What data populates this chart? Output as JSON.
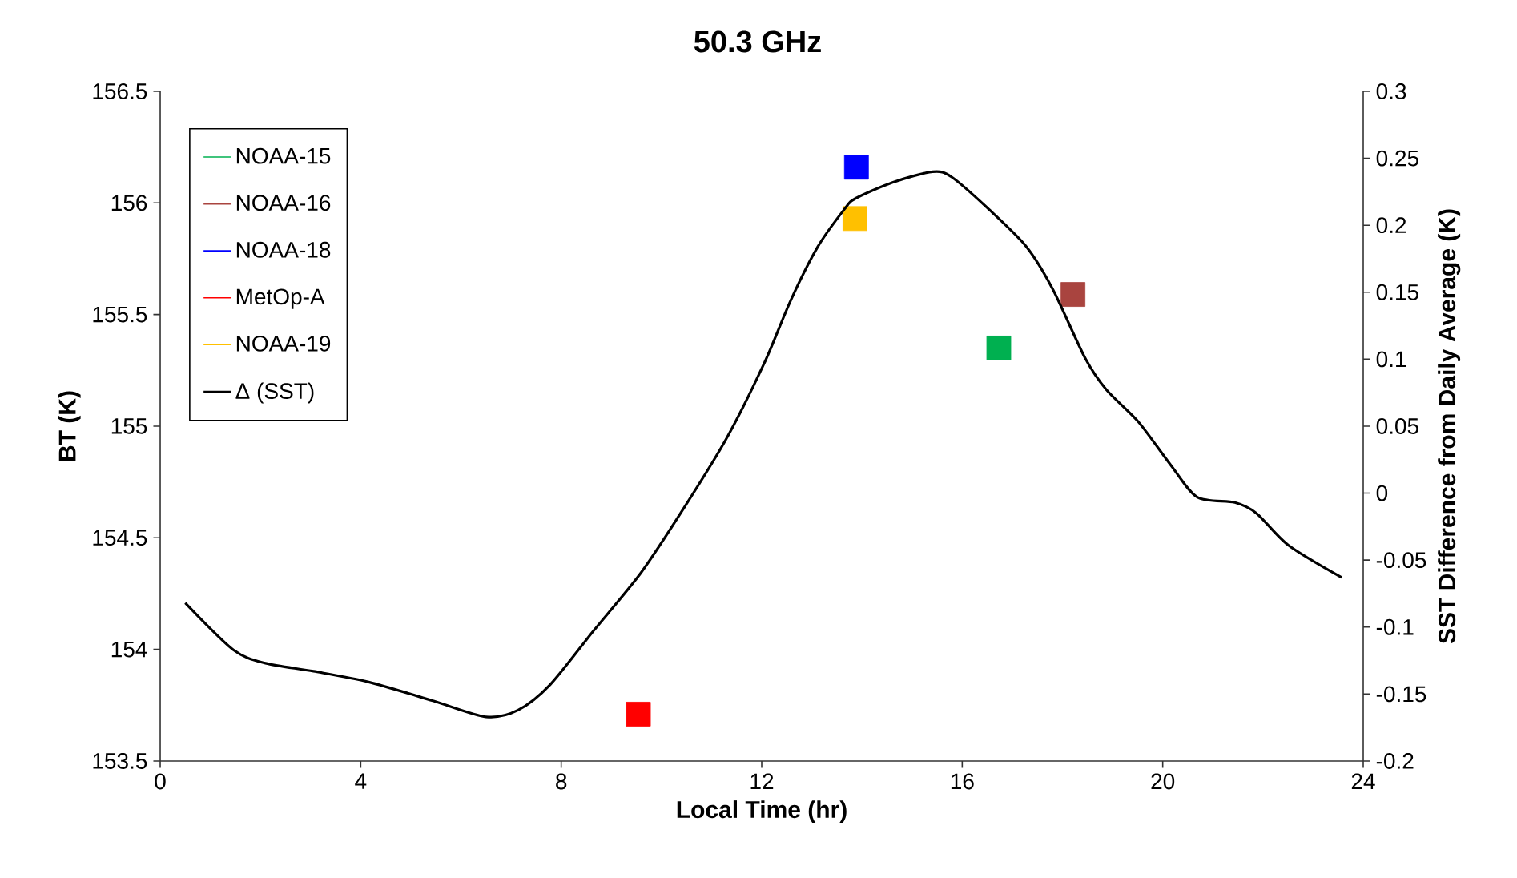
{
  "chart_data": {
    "type": "scatter",
    "title": "50.3 GHz",
    "xlabel": "Local Time (hr)",
    "ylabel": "BT (K)",
    "y2label": "SST Difference from Daily Average  (K)",
    "xlim": [
      0,
      24
    ],
    "xticks": [
      0,
      4,
      8,
      12,
      16,
      20,
      24
    ],
    "ylim": [
      153.5,
      156.5
    ],
    "yticks": [
      153.5,
      154,
      154.5,
      155,
      155.5,
      156,
      156.5
    ],
    "y2lim": [
      -0.2,
      0.3
    ],
    "y2ticks": [
      -0.2,
      -0.15,
      -0.1,
      -0.05,
      0,
      0.05,
      0.1,
      0.15,
      0.2,
      0.25,
      0.3
    ],
    "legend": "top left",
    "marker": "square",
    "series": [
      {
        "name": "NOAA-15",
        "color": "#00b050",
        "x": [
          16.73
        ],
        "values": [
          155.35
        ]
      },
      {
        "name": "NOAA-16",
        "color": "#a9443f",
        "x": [
          18.21
        ],
        "values": [
          155.59
        ]
      },
      {
        "name": "NOAA-18",
        "color": "#0000ff",
        "x": [
          13.89
        ],
        "values": [
          156.16
        ]
      },
      {
        "name": "MetOp-A",
        "color": "#ff0000",
        "x": [
          9.54
        ],
        "values": [
          153.71
        ]
      },
      {
        "name": "NOAA-19",
        "color": "#ffc000",
        "x": [
          13.86
        ],
        "values": [
          155.93
        ]
      },
      {
        "name": "Δ (SST)",
        "color": "#000000",
        "type": "line",
        "axis": "y2",
        "marker": "none",
        "x": [
          0.5,
          1.46,
          2.1,
          3.06,
          4.16,
          5.44,
          6.5,
          7.14,
          7.78,
          8.64,
          9.6,
          10.45,
          11.3,
          12.05,
          12.58,
          13.12,
          13.65,
          13.87,
          14.61,
          15.41,
          15.79,
          16.53,
          17.28,
          17.81,
          18.45,
          18.88,
          19.52,
          20.16,
          20.69,
          21.44,
          21.87,
          22.51,
          23.57
        ],
        "values": [
          -0.082,
          -0.117,
          -0.127,
          -0.133,
          -0.141,
          -0.155,
          -0.167,
          -0.162,
          -0.143,
          -0.103,
          -0.059,
          -0.011,
          0.041,
          0.097,
          0.144,
          0.184,
          0.212,
          0.22,
          0.232,
          0.24,
          0.236,
          0.212,
          0.184,
          0.152,
          0.101,
          0.077,
          0.053,
          0.021,
          -0.003,
          -0.007,
          -0.015,
          -0.039,
          -0.063
        ]
      }
    ]
  }
}
